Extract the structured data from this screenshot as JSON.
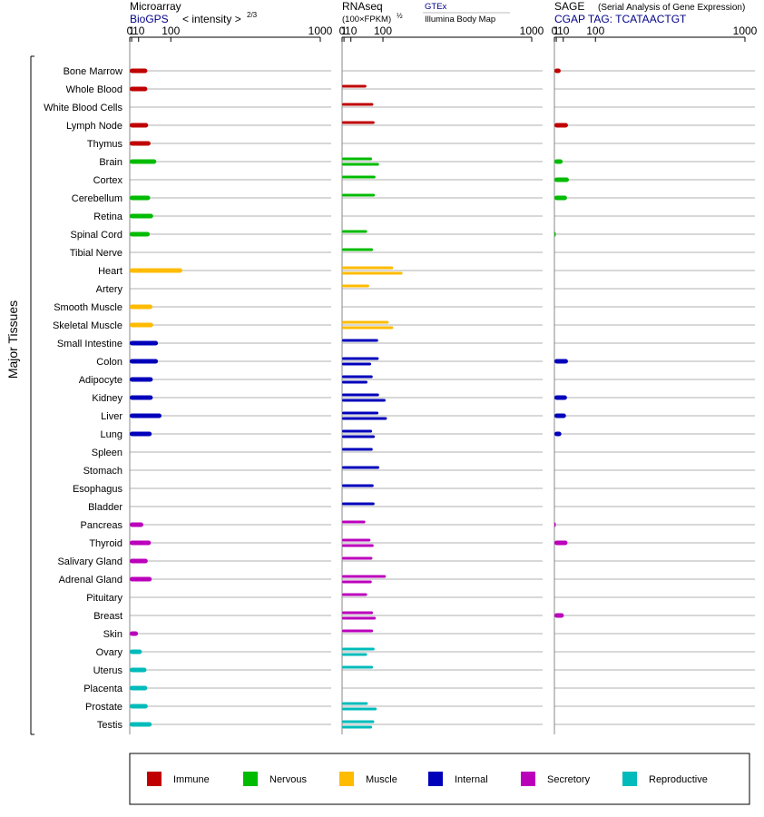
{
  "colors": {
    "Immune": "#c00000",
    "Nervous": "#00bb00",
    "Muscle": "#ffbb00",
    "Internal": "#0000bb",
    "Secretory": "#bb00bb",
    "Reproductive": "#00bbbb"
  },
  "chart_data": {
    "type": "bar",
    "orientation": "horizontal",
    "ylabel": "Major Tissues",
    "x_scale": "power (intensity^(2/3))",
    "xlim": [
      0,
      1000
    ],
    "x_ticks": [
      "0",
      "1",
      "10",
      "100",
      "1000"
    ],
    "grid": true,
    "legend_position": "bottom",
    "categories": [
      "Bone Marrow",
      "Whole Blood",
      "White Blood Cells",
      "Lymph Node",
      "Thymus",
      "Brain",
      "Cortex",
      "Cerebellum",
      "Retina",
      "Spinal Cord",
      "Tibial Nerve",
      "Heart",
      "Artery",
      "Smooth Muscle",
      "Skeletal Muscle",
      "Small Intestine",
      "Colon",
      "Adipocyte",
      "Kidney",
      "Liver",
      "Lung",
      "Spleen",
      "Stomach",
      "Esophagus",
      "Bladder",
      "Pancreas",
      "Thyroid",
      "Salivary Gland",
      "Adrenal Gland",
      "Pituitary",
      "Breast",
      "Skin",
      "Ovary",
      "Uterus",
      "Placenta",
      "Prostate",
      "Testis"
    ],
    "category_groups": [
      "Immune",
      "Immune",
      "Immune",
      "Immune",
      "Immune",
      "Nervous",
      "Nervous",
      "Nervous",
      "Nervous",
      "Nervous",
      "Nervous",
      "Muscle",
      "Muscle",
      "Muscle",
      "Muscle",
      "Internal",
      "Internal",
      "Internal",
      "Internal",
      "Internal",
      "Internal",
      "Internal",
      "Internal",
      "Internal",
      "Internal",
      "Secretory",
      "Secretory",
      "Secretory",
      "Secretory",
      "Secretory",
      "Secretory",
      "Secretory",
      "Reproductive",
      "Reproductive",
      "Reproductive",
      "Reproductive",
      "Reproductive"
    ],
    "legend": [
      "Immune",
      "Nervous",
      "Muscle",
      "Internal",
      "Secretory",
      "Reproductive"
    ],
    "panels": [
      {
        "title": "Microarray",
        "subtitle_source": "BioGPS",
        "subtitle_label": "< intensity >",
        "subtitle_exp": "2/3",
        "values": [
          28,
          28,
          null,
          30,
          36,
          52,
          null,
          35,
          43,
          34,
          null,
          145,
          null,
          41,
          43,
          57,
          57,
          42,
          42,
          68,
          39,
          null,
          null,
          null,
          null,
          19,
          37,
          29,
          39,
          null,
          null,
          9,
          16,
          26,
          28,
          29,
          39
        ]
      },
      {
        "title": "RNAseq",
        "unit_label": "(100×FPKM)",
        "unit_exp": "½",
        "source_top": "GTEx",
        "source_bottom": "Illumina Body Map",
        "values_gtex": [
          null,
          46,
          67,
          71,
          null,
          63,
          74,
          72,
          null,
          48,
          66,
          140,
          54,
          null,
          122,
          83,
          85,
          65,
          86,
          84,
          63,
          65,
          87,
          68,
          71,
          43,
          58,
          64,
          111,
          48,
          66,
          66,
          71,
          66,
          null,
          50,
          70
        ],
        "values_illumina": [
          null,
          null,
          null,
          null,
          null,
          86,
          null,
          null,
          null,
          null,
          null,
          180,
          null,
          null,
          140,
          null,
          60,
          49,
          110,
          115,
          72,
          null,
          null,
          null,
          null,
          null,
          68,
          null,
          62,
          null,
          75,
          null,
          48,
          null,
          null,
          78,
          63
        ]
      },
      {
        "title": "SAGE",
        "subtitle": "(Serial Analysis of Gene Expression)",
        "tag_label": "CGAP TAG: TCATAACTGT",
        "values": [
          6,
          null,
          null,
          19,
          null,
          9,
          21,
          17,
          null,
          0.05,
          null,
          null,
          null,
          null,
          null,
          null,
          19,
          null,
          17,
          15,
          7,
          null,
          null,
          null,
          null,
          0.05,
          18,
          null,
          null,
          null,
          11,
          null,
          null,
          null,
          null,
          null,
          null
        ]
      }
    ]
  }
}
